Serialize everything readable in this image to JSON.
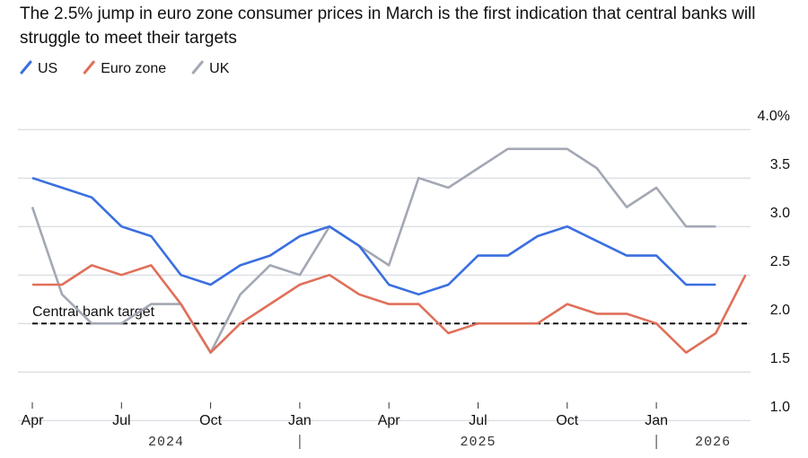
{
  "chart_data": {
    "type": "line",
    "title": "The 2.5% jump in euro zone consumer prices in March is the first indication that central banks will struggle to meet their targets",
    "categories": [
      "Apr",
      null,
      null,
      "Jul",
      null,
      null,
      "Oct",
      null,
      null,
      "Jan",
      null,
      null,
      "Apr",
      null,
      null,
      "Jul",
      null,
      null,
      "Oct",
      null,
      null,
      "Jan",
      null,
      null,
      null
    ],
    "year_labels": [
      "2024",
      "2025",
      "2026"
    ],
    "series": [
      {
        "name": "US",
        "color": "#3a6fe0",
        "values": [
          3.5,
          3.4,
          3.3,
          3.0,
          2.9,
          2.5,
          2.4,
          2.6,
          2.7,
          2.9,
          3.0,
          2.8,
          2.4,
          2.3,
          2.4,
          2.7,
          2.7,
          2.9,
          3.0,
          2.85,
          2.7,
          2.7,
          2.4,
          2.4,
          null
        ]
      },
      {
        "name": "Euro zone",
        "color": "#e0705a",
        "values": [
          2.4,
          2.4,
          2.6,
          2.5,
          2.6,
          2.2,
          1.7,
          2.0,
          2.2,
          2.4,
          2.5,
          2.3,
          2.2,
          2.2,
          1.9,
          2.0,
          2.0,
          2.0,
          2.2,
          2.1,
          2.1,
          2.0,
          1.7,
          1.9,
          2.5
        ]
      },
      {
        "name": "UK",
        "color": "#a3a8b4",
        "values": [
          3.2,
          2.3,
          2.0,
          2.0,
          2.2,
          2.2,
          1.7,
          2.3,
          2.6,
          2.5,
          3.0,
          2.8,
          2.6,
          3.5,
          3.4,
          3.6,
          3.8,
          3.8,
          3.8,
          3.6,
          3.2,
          3.4,
          3.0,
          3.0,
          null
        ]
      }
    ],
    "target": {
      "label": "Central bank target",
      "value": 2.0
    },
    "ylim": [
      0.9,
      4.15
    ],
    "yticks": [
      {
        "value": 1.0,
        "label": "1.0"
      },
      {
        "value": 1.5,
        "label": "1.5"
      },
      {
        "value": 2.0,
        "label": "2.0"
      },
      {
        "value": 2.5,
        "label": "2.5"
      },
      {
        "value": 3.0,
        "label": "3.0"
      },
      {
        "value": 3.5,
        "label": "3.5"
      },
      {
        "value": 4.0,
        "label": "4.0%"
      }
    ],
    "grid": true
  }
}
